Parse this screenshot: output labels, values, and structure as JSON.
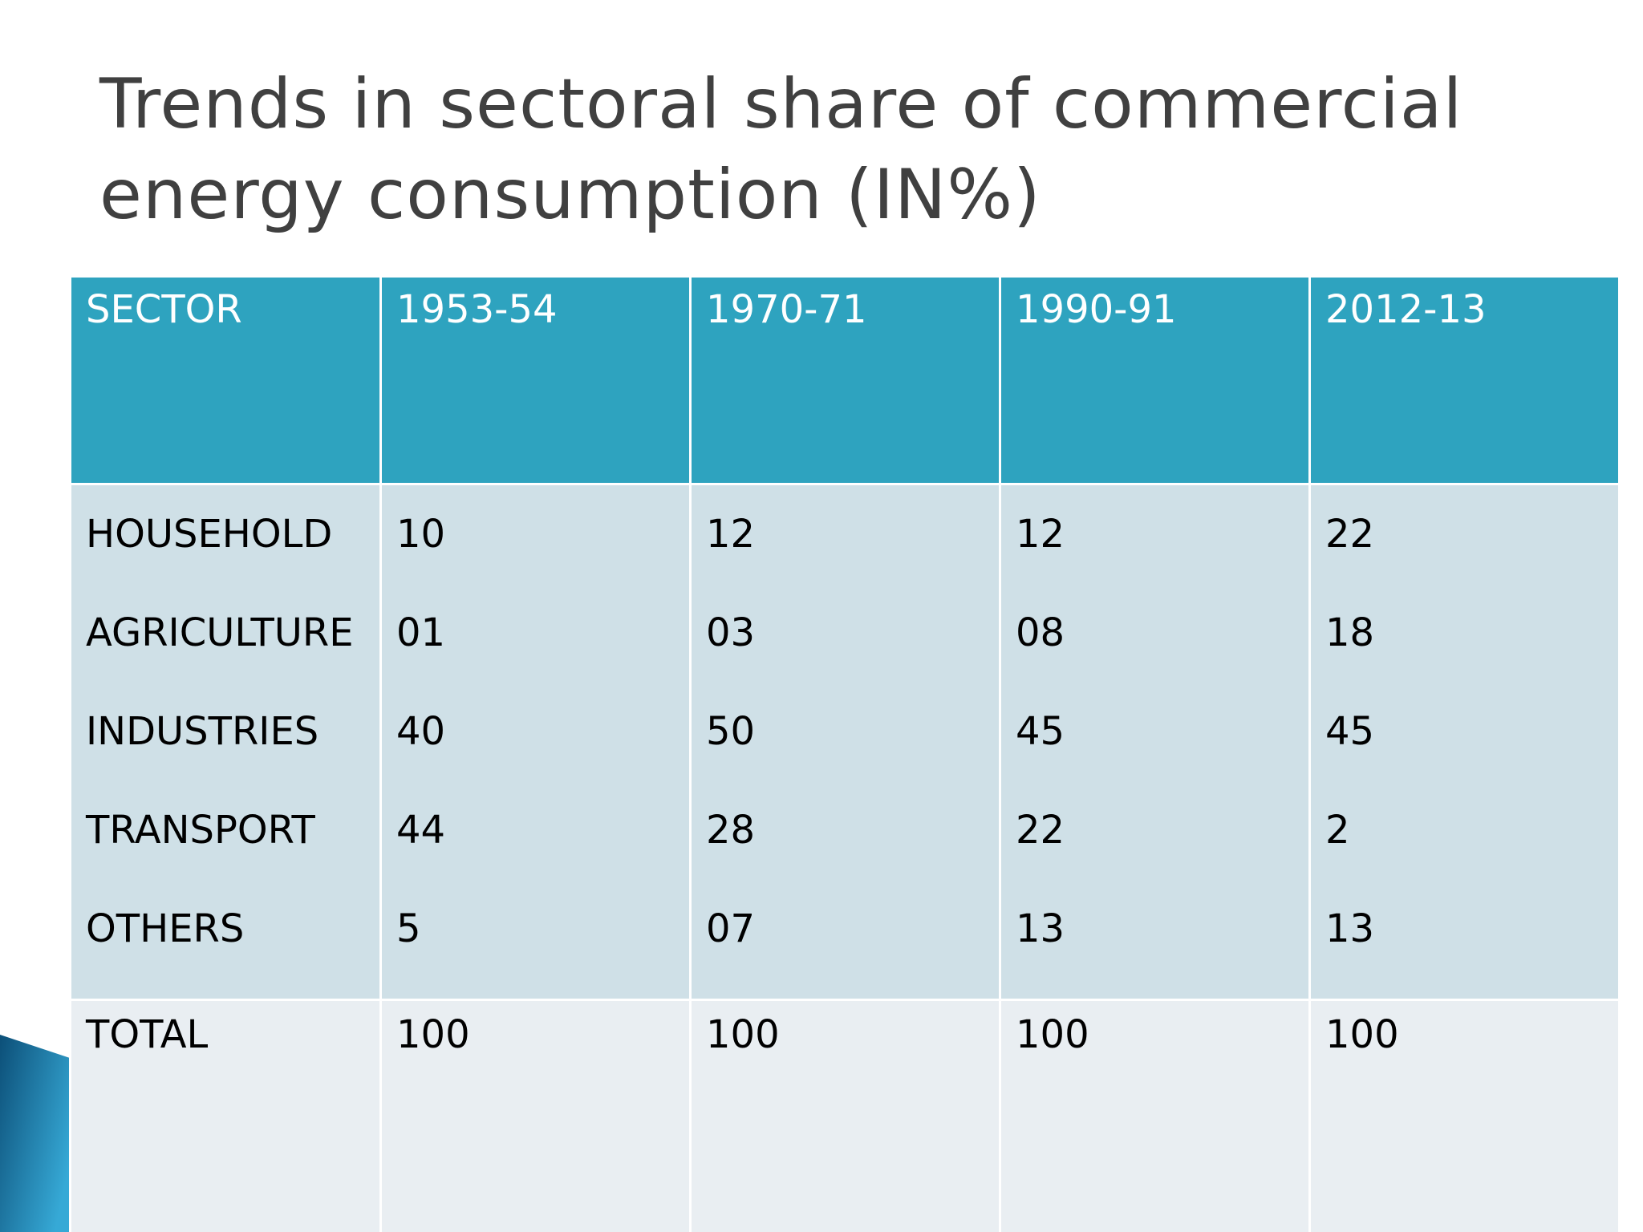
{
  "slide": {
    "title_line1": "Trends in sectoral share of commercial",
    "title_line2": "energy consumption (IN%)"
  },
  "table": {
    "headers": [
      "SECTOR",
      "1953-54",
      "1970-71",
      "1990-91",
      "2012-13"
    ],
    "sectors": [
      "HOUSEHOLD",
      "AGRICULTURE",
      "INDUSTRIES",
      "TRANSPORT",
      "OTHERS"
    ],
    "columns": [
      [
        "10",
        "01",
        "40",
        "44",
        "5"
      ],
      [
        "12",
        "03",
        "50",
        "28",
        "07"
      ],
      [
        "12",
        "08",
        "45",
        "22",
        "13"
      ],
      [
        "22",
        "18",
        "45",
        "2",
        "13"
      ]
    ],
    "total": [
      "TOTAL",
      "100",
      "100",
      "100",
      "100"
    ]
  },
  "colors": {
    "title": "#404040",
    "header_bg": "#2ea3bf",
    "body_bg": "#cfe0e7",
    "total_bg": "#e9eef2",
    "accent": "#1a6e97"
  }
}
